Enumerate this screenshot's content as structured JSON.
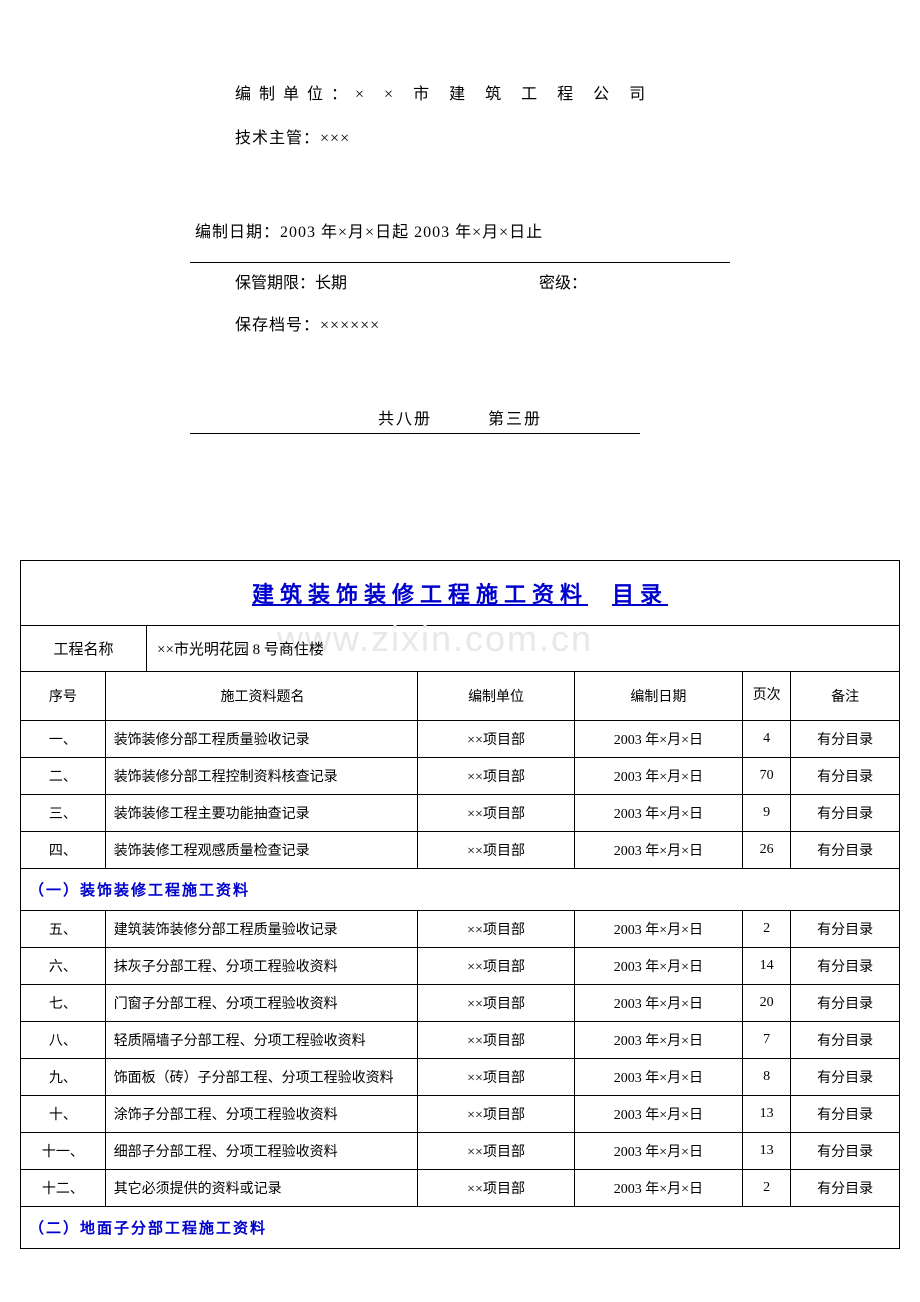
{
  "header": {
    "compile_unit_label": "编制单位：",
    "compile_unit_value": "× × 市 建 筑 工 程 公 司",
    "tech_lead_label": "技术主管：",
    "tech_lead_value": "×××",
    "compile_date_label": "编制日期：",
    "compile_date_value": "2003 年×月×日起 2003 年×月×日止",
    "retention_label": "保管期限：",
    "retention_value": "长期",
    "secrecy_label": "密级：",
    "archive_no_label": "保存档号：",
    "archive_no_value": "××××××",
    "volume_left": "共八册",
    "volume_right": "第三册"
  },
  "doc_title_a": "建筑装饰装修工程施工资料",
  "doc_title_b": "目录",
  "project_label": "工程名称",
  "project_value": "××市光明花园 8 号商住楼",
  "watermark": "www.zixin.com.cn",
  "columns": {
    "seq": "序号",
    "title": "施工资料题名",
    "unit": "编制单位",
    "date": "编制日期",
    "page": "页次",
    "note": "备注"
  },
  "rows": [
    {
      "seq": "一、",
      "title": "装饰装修分部工程质量验收记录",
      "unit": "××项目部",
      "date": "2003 年×月×日",
      "page": "4",
      "note": "有分目录"
    },
    {
      "seq": "二、",
      "title": "装饰装修分部工程控制资料核查记录",
      "unit": "××项目部",
      "date": "2003 年×月×日",
      "page": "70",
      "note": "有分目录"
    },
    {
      "seq": "三、",
      "title": "装饰装修工程主要功能抽查记录",
      "unit": "××项目部",
      "date": "2003 年×月×日",
      "page": "9",
      "note": "有分目录"
    },
    {
      "seq": "四、",
      "title": "装饰装修工程观感质量检查记录",
      "unit": "××项目部",
      "date": "2003 年×月×日",
      "page": "26",
      "note": "有分目录"
    }
  ],
  "section1": "（一）装饰装修工程施工资料",
  "rows2": [
    {
      "seq": "五、",
      "title": "建筑装饰装修分部工程质量验收记录",
      "unit": "××项目部",
      "date": "2003 年×月×日",
      "page": "2",
      "note": "有分目录"
    },
    {
      "seq": "六、",
      "title": "抹灰子分部工程、分项工程验收资料",
      "unit": "××项目部",
      "date": "2003 年×月×日",
      "page": "14",
      "note": "有分目录"
    },
    {
      "seq": "七、",
      "title": "门窗子分部工程、分项工程验收资料",
      "unit": "××项目部",
      "date": "2003 年×月×日",
      "page": "20",
      "note": "有分目录"
    },
    {
      "seq": "八、",
      "title": "轻质隔墙子分部工程、分项工程验收资料",
      "unit": "××项目部",
      "date": "2003 年×月×日",
      "page": "7",
      "note": "有分目录"
    },
    {
      "seq": "九、",
      "title": "饰面板（砖）子分部工程、分项工程验收资料",
      "unit": "××项目部",
      "date": "2003 年×月×日",
      "page": "8",
      "note": "有分目录"
    },
    {
      "seq": "十、",
      "title": "涂饰子分部工程、分项工程验收资料",
      "unit": "××项目部",
      "date": "2003 年×月×日",
      "page": "13",
      "note": "有分目录"
    },
    {
      "seq": "十一、",
      "title": "细部子分部工程、分项工程验收资料",
      "unit": "××项目部",
      "date": "2003 年×月×日",
      "page": "13",
      "note": "有分目录"
    },
    {
      "seq": "十二、",
      "title": "其它必须提供的资料或记录",
      "unit": "××项目部",
      "date": "2003 年×月×日",
      "page": "2",
      "note": "有分目录"
    }
  ],
  "section2": "（二）地面子分部工程施工资料"
}
